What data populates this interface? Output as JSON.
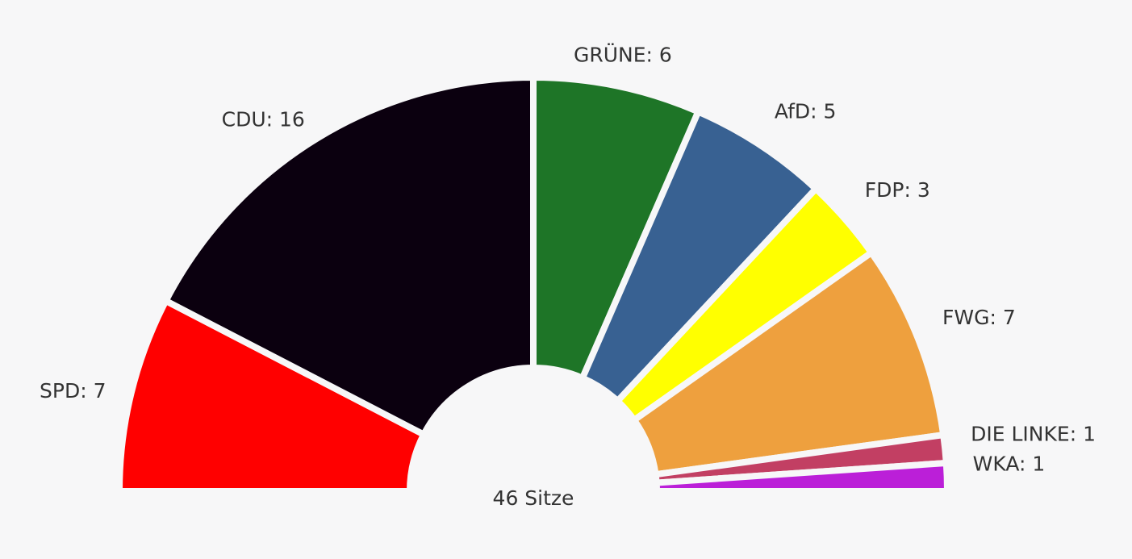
{
  "chart_data": {
    "type": "parliament",
    "values": [
      7,
      16,
      6,
      5,
      3,
      7,
      1,
      1
    ],
    "value_labels": [
      "SPD: 7",
      "CDU: 16",
      "GRÜNE: 6",
      "AfD: 5",
      "FDP: 3",
      "FWG: 7",
      "DIE LINKE: 1",
      "WKA: 1"
    ],
    "colors": [
      "#ff0000",
      "#0b000f",
      "#1e7527",
      "#386192",
      "#ffff00",
      "#eea03e",
      "#c23f63",
      "#bb1fd8"
    ],
    "center_label": "46 Sitze"
  }
}
